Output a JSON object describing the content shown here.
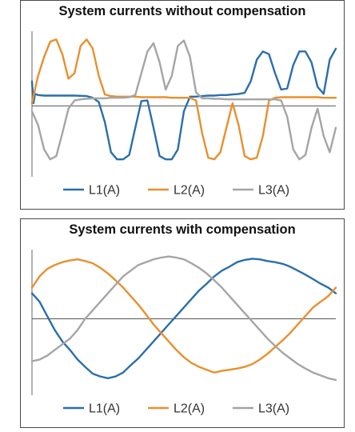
{
  "chart_data": [
    {
      "type": "line",
      "title": "System currents without compensation",
      "xlabel": "",
      "ylabel": "",
      "grid": false,
      "legend_position": "bottom",
      "ylim": [
        -1.3,
        1.4
      ],
      "xlim": [
        0,
        1
      ],
      "series": [
        {
          "name": "L1(A)",
          "color": "#2a6fac",
          "x": [
            0.0,
            0.005,
            0.01,
            0.02,
            0.04,
            0.08,
            0.1,
            0.14,
            0.18,
            0.2,
            0.22,
            0.24,
            0.26,
            0.28,
            0.3,
            0.32,
            0.34,
            0.36,
            0.38,
            0.4,
            0.42,
            0.44,
            0.46,
            0.48,
            0.5,
            0.52,
            0.54,
            0.56,
            0.58,
            0.6,
            0.62,
            0.64,
            0.66,
            0.68,
            0.7,
            0.72,
            0.74,
            0.76,
            0.78,
            0.8,
            0.82,
            0.84,
            0.86,
            0.88,
            0.9,
            0.92,
            0.94,
            0.96,
            0.98,
            1.0
          ],
          "y": [
            0.45,
            0.05,
            0.22,
            0.2,
            0.19,
            0.19,
            0.19,
            0.19,
            0.18,
            0.15,
            0.07,
            -0.3,
            -0.85,
            -0.98,
            -0.98,
            -0.9,
            -0.4,
            0.09,
            0.1,
            -0.4,
            -0.92,
            -0.98,
            -0.98,
            -0.8,
            -0.1,
            0.17,
            0.17,
            0.18,
            0.19,
            0.19,
            0.2,
            0.2,
            0.21,
            0.22,
            0.24,
            0.45,
            0.85,
            1.0,
            0.95,
            0.6,
            0.3,
            0.32,
            0.75,
            1.0,
            1.0,
            0.8,
            0.35,
            0.22,
            0.85,
            1.05
          ]
        },
        {
          "name": "L2(A)",
          "color": "#e8902e",
          "x": [
            0.0,
            0.02,
            0.04,
            0.06,
            0.08,
            0.1,
            0.12,
            0.14,
            0.16,
            0.18,
            0.2,
            0.22,
            0.24,
            0.26,
            0.28,
            0.3,
            0.32,
            0.34,
            0.36,
            0.38,
            0.4,
            0.42,
            0.44,
            0.46,
            0.48,
            0.5,
            0.52,
            0.54,
            0.56,
            0.58,
            0.6,
            0.62,
            0.64,
            0.66,
            0.68,
            0.7,
            0.72,
            0.74,
            0.76,
            0.78,
            0.8,
            0.82,
            0.84,
            0.86,
            0.88,
            0.9,
            0.92,
            0.94,
            0.96,
            0.98,
            1.0
          ],
          "y": [
            0.05,
            0.55,
            0.9,
            1.18,
            1.22,
            0.95,
            0.5,
            0.6,
            1.1,
            1.22,
            1.05,
            0.55,
            0.21,
            0.18,
            0.17,
            0.17,
            0.17,
            0.17,
            0.16,
            0.16,
            0.16,
            0.16,
            0.16,
            0.15,
            0.15,
            0.15,
            0.15,
            0.1,
            -0.5,
            -0.95,
            -0.98,
            -0.85,
            -0.4,
            0.05,
            -0.35,
            -0.92,
            -0.98,
            -0.95,
            -0.55,
            0.1,
            0.15,
            0.16,
            0.16,
            0.16,
            0.16,
            0.16,
            0.16,
            0.16,
            0.15,
            0.15,
            0.15
          ]
        },
        {
          "name": "L3(A)",
          "color": "#a5a5a5",
          "x": [
            0.0,
            0.02,
            0.04,
            0.06,
            0.08,
            0.1,
            0.12,
            0.14,
            0.16,
            0.18,
            0.2,
            0.22,
            0.24,
            0.26,
            0.28,
            0.3,
            0.32,
            0.34,
            0.36,
            0.38,
            0.4,
            0.42,
            0.44,
            0.46,
            0.48,
            0.5,
            0.52,
            0.54,
            0.56,
            0.58,
            0.6,
            0.62,
            0.64,
            0.66,
            0.68,
            0.7,
            0.72,
            0.74,
            0.76,
            0.78,
            0.8,
            0.82,
            0.84,
            0.86,
            0.88,
            0.9,
            0.92,
            0.94,
            0.96,
            0.98,
            1.0
          ],
          "y": [
            -0.1,
            -0.35,
            -0.8,
            -0.98,
            -0.92,
            -0.5,
            -0.05,
            0.1,
            0.12,
            0.13,
            0.14,
            0.14,
            0.14,
            0.15,
            0.15,
            0.15,
            0.16,
            0.2,
            0.6,
            1.0,
            1.15,
            0.8,
            0.3,
            0.55,
            1.1,
            1.2,
            0.9,
            0.25,
            0.14,
            0.14,
            0.13,
            0.13,
            0.12,
            0.12,
            0.12,
            0.12,
            0.12,
            0.12,
            0.12,
            0.12,
            0.12,
            0.1,
            -0.2,
            -0.8,
            -0.98,
            -0.9,
            -0.4,
            -0.05,
            -0.55,
            -0.85,
            -0.4
          ]
        }
      ]
    },
    {
      "type": "line",
      "title": "System currents with compensation",
      "xlabel": "",
      "ylabel": "",
      "grid": false,
      "legend_position": "bottom",
      "ylim": [
        -1.35,
        1.25
      ],
      "xlim": [
        0,
        1
      ],
      "series": [
        {
          "name": "L1(A)",
          "color": "#2a6fac",
          "x": [
            0.0,
            0.025,
            0.05,
            0.075,
            0.1,
            0.125,
            0.15,
            0.175,
            0.2,
            0.225,
            0.25,
            0.275,
            0.3,
            0.325,
            0.35,
            0.375,
            0.4,
            0.425,
            0.45,
            0.475,
            0.5,
            0.525,
            0.55,
            0.575,
            0.6,
            0.625,
            0.65,
            0.675,
            0.7,
            0.725,
            0.75,
            0.775,
            0.8,
            0.825,
            0.85,
            0.875,
            0.9,
            0.925,
            0.95,
            0.975,
            1.0
          ],
          "y": [
            0.45,
            0.3,
            0.05,
            -0.2,
            -0.4,
            -0.55,
            -0.72,
            -0.85,
            -0.97,
            -1.02,
            -1.05,
            -1.02,
            -0.95,
            -0.82,
            -0.7,
            -0.55,
            -0.4,
            -0.25,
            -0.1,
            0.05,
            0.2,
            0.35,
            0.5,
            0.62,
            0.75,
            0.85,
            0.92,
            1.0,
            1.04,
            1.06,
            1.05,
            1.02,
            1.0,
            0.97,
            0.92,
            0.85,
            0.78,
            0.7,
            0.62,
            0.55,
            0.45
          ]
        },
        {
          "name": "L2(A)",
          "color": "#e8902e",
          "x": [
            0.0,
            0.025,
            0.05,
            0.075,
            0.1,
            0.125,
            0.15,
            0.175,
            0.2,
            0.225,
            0.25,
            0.275,
            0.3,
            0.325,
            0.35,
            0.375,
            0.4,
            0.425,
            0.45,
            0.475,
            0.5,
            0.525,
            0.55,
            0.575,
            0.6,
            0.625,
            0.65,
            0.675,
            0.7,
            0.725,
            0.75,
            0.775,
            0.8,
            0.825,
            0.85,
            0.875,
            0.9,
            0.925,
            0.95,
            0.975,
            1.0
          ],
          "y": [
            0.55,
            0.75,
            0.88,
            0.95,
            1.0,
            1.03,
            1.05,
            1.02,
            0.98,
            0.9,
            0.8,
            0.68,
            0.55,
            0.4,
            0.25,
            0.08,
            -0.1,
            -0.25,
            -0.4,
            -0.55,
            -0.68,
            -0.78,
            -0.85,
            -0.9,
            -0.95,
            -0.92,
            -0.9,
            -0.88,
            -0.85,
            -0.8,
            -0.72,
            -0.62,
            -0.5,
            -0.38,
            -0.25,
            -0.1,
            0.05,
            0.2,
            0.3,
            0.4,
            0.55
          ]
        },
        {
          "name": "L3(A)",
          "color": "#a5a5a5",
          "x": [
            0.0,
            0.025,
            0.05,
            0.075,
            0.1,
            0.125,
            0.15,
            0.175,
            0.2,
            0.225,
            0.25,
            0.275,
            0.3,
            0.325,
            0.35,
            0.375,
            0.4,
            0.425,
            0.45,
            0.475,
            0.5,
            0.525,
            0.55,
            0.575,
            0.6,
            0.625,
            0.65,
            0.675,
            0.7,
            0.725,
            0.75,
            0.775,
            0.8,
            0.825,
            0.85,
            0.875,
            0.9,
            0.925,
            0.95,
            0.975,
            1.0
          ],
          "y": [
            -0.75,
            -0.72,
            -0.65,
            -0.55,
            -0.45,
            -0.35,
            -0.2,
            0.0,
            0.15,
            0.3,
            0.45,
            0.6,
            0.75,
            0.85,
            0.95,
            1.0,
            1.05,
            1.08,
            1.1,
            1.08,
            1.05,
            0.98,
            0.9,
            0.8,
            0.68,
            0.55,
            0.4,
            0.25,
            0.1,
            -0.05,
            -0.2,
            -0.35,
            -0.48,
            -0.6,
            -0.7,
            -0.8,
            -0.88,
            -0.95,
            -1.0,
            -1.05,
            -1.08
          ]
        }
      ]
    }
  ]
}
